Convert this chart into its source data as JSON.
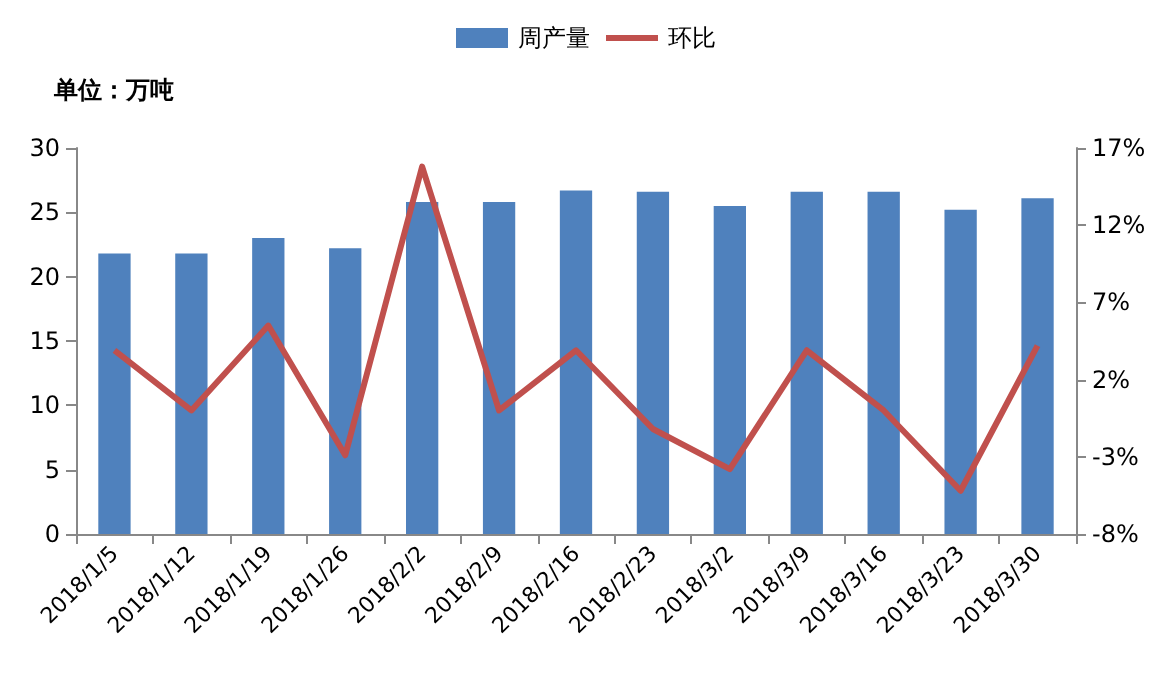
{
  "chart_data": {
    "type": "bar",
    "ylabel": "单位：万吨",
    "categories": [
      "2018/1/5",
      "2018/1/12",
      "2018/1/19",
      "2018/1/26",
      "2018/2/2",
      "2018/2/9",
      "2018/2/16",
      "2018/2/23",
      "2018/3/2",
      "2018/3/9",
      "2018/3/16",
      "2018/3/23",
      "2018/3/30"
    ],
    "series": [
      {
        "name": "周产量",
        "color": "#4f81bd",
        "values": [
          21.8,
          21.8,
          23.0,
          22.2,
          25.8,
          25.8,
          26.7,
          26.6,
          25.5,
          26.6,
          26.6,
          25.2,
          26.1
        ]
      },
      {
        "name": "环比",
        "type": "line",
        "axis": "y2",
        "color": "#c0504d",
        "values": [
          3.9,
          0.0,
          5.5,
          -2.9,
          15.8,
          0.0,
          3.9,
          -1.2,
          -3.8,
          3.9,
          0.0,
          -5.2,
          4.2
        ]
      }
    ],
    "ylim": [
      0,
      30
    ],
    "yticks": [
      0,
      5,
      10,
      15,
      20,
      25,
      30
    ],
    "y2lim": [
      -8,
      17
    ],
    "y2ticks": [
      {
        "value": -8,
        "label": "-8%"
      },
      {
        "value": -3,
        "label": "-3%"
      },
      {
        "value": 2,
        "label": "2%"
      },
      {
        "value": 7,
        "label": "7%"
      },
      {
        "value": 12,
        "label": "12%"
      },
      {
        "value": 17,
        "label": "17%"
      }
    ],
    "legend": "top",
    "grid": false,
    "marker": "none"
  }
}
